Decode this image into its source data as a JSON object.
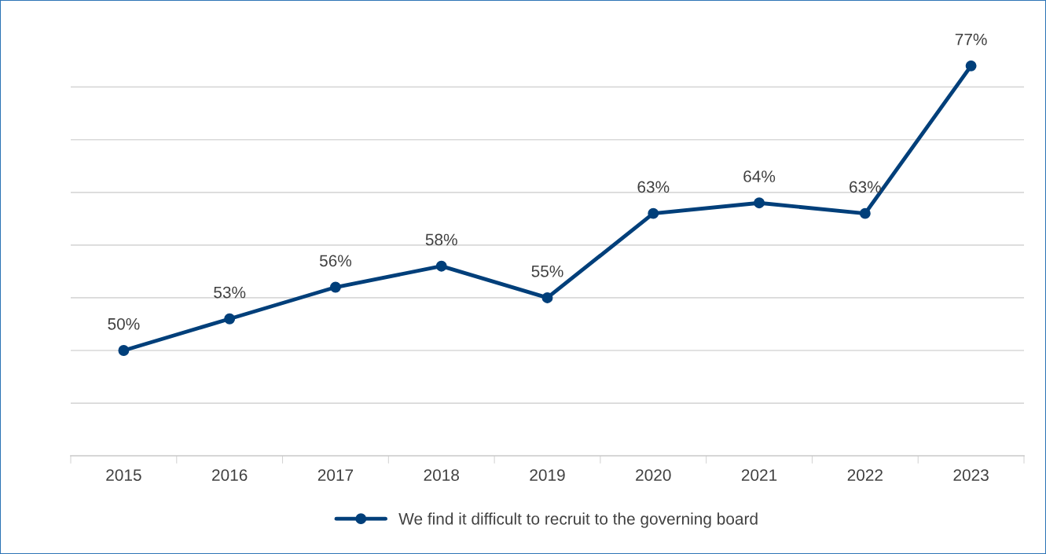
{
  "chart_data": {
    "type": "line",
    "categories": [
      "2015",
      "2016",
      "2017",
      "2018",
      "2019",
      "2020",
      "2021",
      "2022",
      "2023"
    ],
    "series": [
      {
        "name": "We find it difficult to recruit to the governing board",
        "color": "#003f7a",
        "values": [
          50,
          53,
          56,
          58,
          55,
          63,
          64,
          63,
          77
        ],
        "value_labels": [
          "50%",
          "53%",
          "56%",
          "58%",
          "55%",
          "63%",
          "64%",
          "63%",
          "77%"
        ]
      }
    ],
    "tick_labels": "x",
    "grid": "y",
    "legend": "bottom",
    "marker": "circle",
    "line_style": "solid"
  }
}
